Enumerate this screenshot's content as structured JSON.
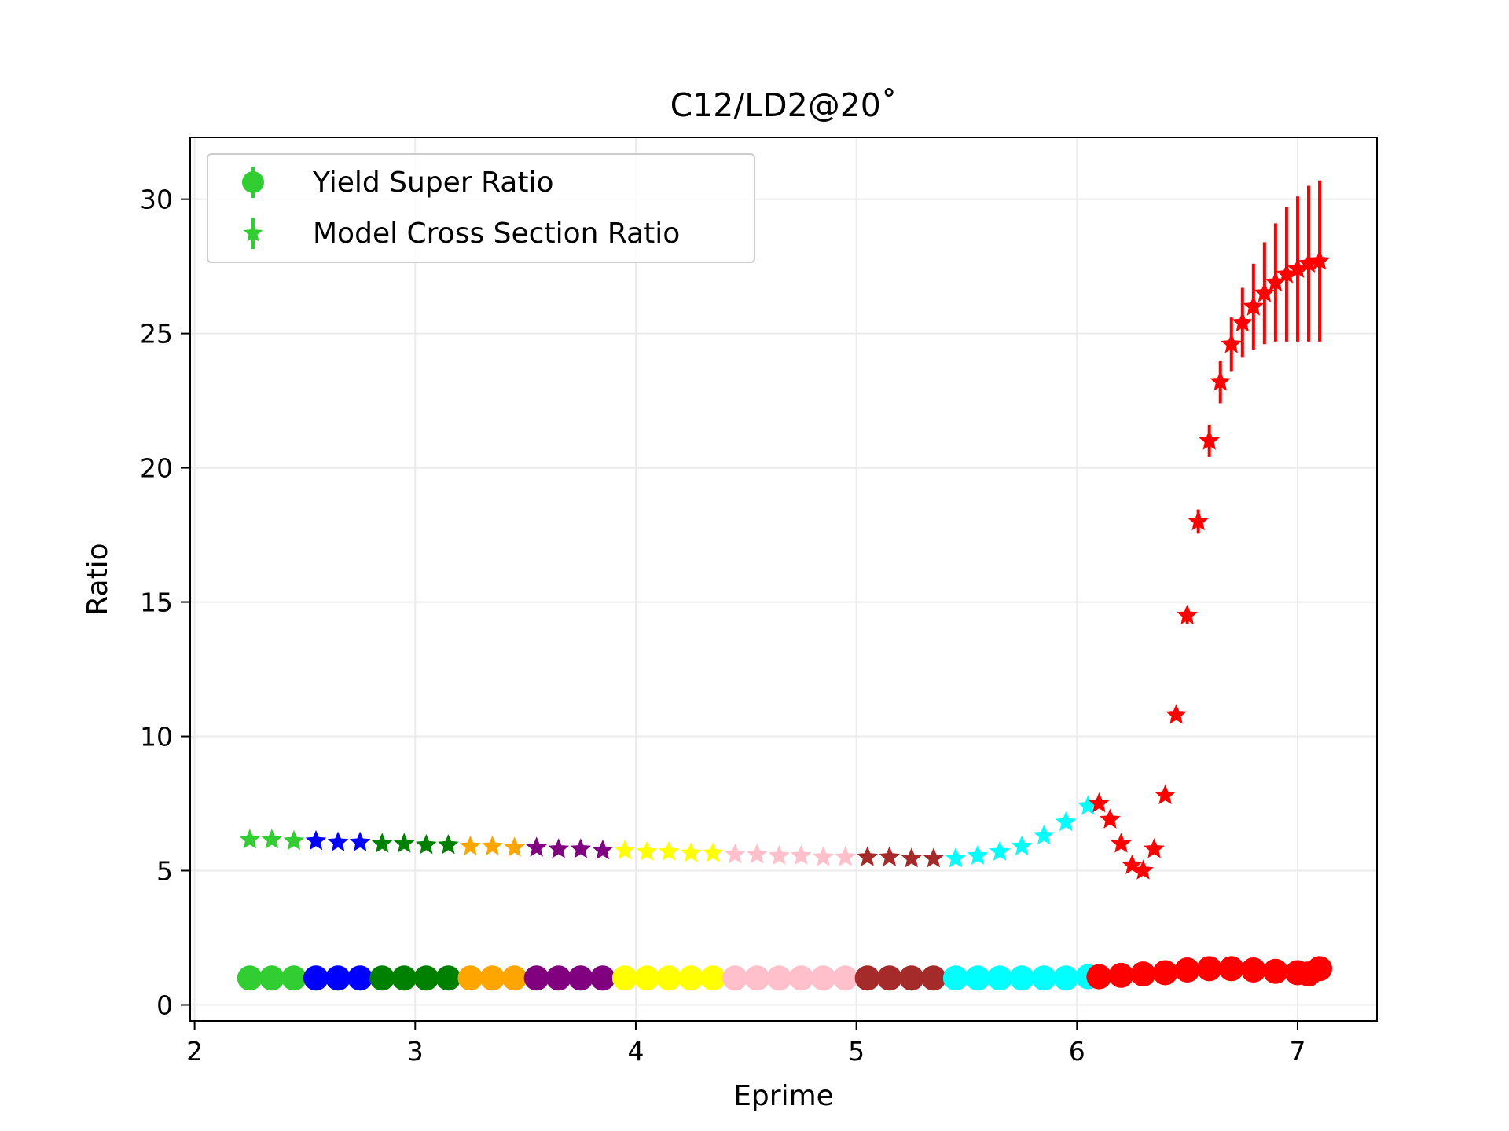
{
  "chart_data": {
    "type": "scatter",
    "title": "C12/LD2@20˚",
    "xlabel": "Eprime",
    "ylabel": "Ratio",
    "xlim": [
      1.98,
      7.36
    ],
    "ylim": [
      -0.6,
      32.3
    ],
    "xticks": [
      2,
      3,
      4,
      5,
      6,
      7
    ],
    "yticks": [
      0,
      5,
      10,
      15,
      20,
      25,
      30
    ],
    "xtick_labels": [
      "2",
      "3",
      "4",
      "5",
      "6",
      "7"
    ],
    "ytick_labels": [
      "0",
      "5",
      "10",
      "15",
      "20",
      "25",
      "30"
    ],
    "grid": true,
    "legend_position": "top-left",
    "legend": [
      {
        "label": "Yield Super Ratio",
        "marker": "circle",
        "color": "#32cd32"
      },
      {
        "label": "Model Cross Section Ratio",
        "marker": "star",
        "color": "#32cd32"
      }
    ],
    "segments": [
      {
        "color": "#32cd32",
        "x_range": [
          2.22,
          2.48
        ]
      },
      {
        "color": "#0000ff",
        "x_range": [
          2.52,
          2.78
        ]
      },
      {
        "color": "#008000",
        "x_range": [
          2.82,
          3.12
        ]
      },
      {
        "color": "#ffa500",
        "x_range": [
          3.15,
          3.49
        ]
      },
      {
        "color": "#800080",
        "x_range": [
          3.53,
          3.91
        ]
      },
      {
        "color": "#ffff00",
        "x_range": [
          3.95,
          4.38
        ]
      },
      {
        "color": "#ffc0cb",
        "x_range": [
          4.4,
          4.92
        ]
      },
      {
        "color": "#a52a2a",
        "x_range": [
          4.95,
          5.4
        ]
      },
      {
        "color": "#00ffff",
        "x_range": [
          5.42,
          6.05
        ]
      },
      {
        "color": "#ff0000",
        "x_range": [
          6.07,
          7.12
        ]
      }
    ],
    "series": [
      {
        "kind": "yield",
        "marker": "circle",
        "x": [
          2.25,
          2.35,
          2.45,
          2.55,
          2.65,
          2.75,
          2.85,
          2.95,
          3.05,
          3.15,
          3.25,
          3.35,
          3.45,
          3.55,
          3.65,
          3.75,
          3.85,
          3.95,
          4.05,
          4.15,
          4.25,
          4.35,
          4.45,
          4.55,
          4.65,
          4.75,
          4.85,
          4.95,
          5.05,
          5.15,
          5.25,
          5.35,
          5.45,
          5.55,
          5.65,
          5.75,
          5.85,
          5.95,
          6.05,
          6.1,
          6.2,
          6.3,
          6.4,
          6.5,
          6.6,
          6.7,
          6.8,
          6.9,
          7.0,
          7.05,
          7.1
        ],
        "y": [
          1.0,
          1.0,
          1.0,
          1.0,
          1.0,
          1.0,
          1.0,
          1.0,
          1.0,
          1.0,
          1.0,
          1.0,
          1.0,
          1.0,
          1.0,
          1.0,
          1.0,
          1.0,
          1.0,
          1.0,
          1.0,
          1.0,
          1.0,
          1.0,
          1.0,
          1.0,
          1.0,
          1.0,
          1.0,
          1.0,
          1.0,
          1.0,
          1.0,
          1.0,
          1.0,
          1.0,
          1.0,
          1.0,
          1.05,
          1.05,
          1.1,
          1.15,
          1.2,
          1.3,
          1.35,
          1.35,
          1.3,
          1.25,
          1.2,
          1.15,
          1.35
        ]
      },
      {
        "kind": "model",
        "marker": "star",
        "x": [
          2.25,
          2.35,
          2.45,
          2.55,
          2.65,
          2.75,
          2.85,
          2.95,
          3.05,
          3.15,
          3.25,
          3.35,
          3.45,
          3.55,
          3.65,
          3.75,
          3.85,
          3.95,
          4.05,
          4.15,
          4.25,
          4.35,
          4.45,
          4.55,
          4.65,
          4.75,
          4.85,
          4.95,
          5.05,
          5.15,
          5.25,
          5.35,
          5.45,
          5.55,
          5.65,
          5.75,
          5.85,
          5.95,
          6.05,
          6.1,
          6.15,
          6.2,
          6.25,
          6.3,
          6.35,
          6.4,
          6.45,
          6.5,
          6.55,
          6.6,
          6.65,
          6.7,
          6.75,
          6.8,
          6.85,
          6.9,
          6.95,
          7.0,
          7.05,
          7.1
        ],
        "y": [
          6.15,
          6.15,
          6.1,
          6.1,
          6.05,
          6.05,
          6.0,
          6.0,
          5.95,
          5.95,
          5.9,
          5.9,
          5.85,
          5.85,
          5.8,
          5.8,
          5.75,
          5.75,
          5.7,
          5.7,
          5.65,
          5.65,
          5.6,
          5.6,
          5.55,
          5.55,
          5.5,
          5.5,
          5.5,
          5.5,
          5.45,
          5.45,
          5.45,
          5.55,
          5.7,
          5.9,
          6.3,
          6.8,
          7.4,
          7.5,
          6.9,
          6.0,
          5.2,
          5.0,
          5.8,
          7.8,
          10.8,
          14.5,
          18.0,
          21.0,
          23.2,
          24.6,
          25.4,
          26.0,
          26.5,
          26.9,
          27.2,
          27.4,
          27.6,
          27.7
        ],
        "yerr": [
          0,
          0,
          0,
          0,
          0,
          0,
          0,
          0,
          0,
          0,
          0,
          0,
          0,
          0,
          0,
          0,
          0,
          0,
          0,
          0,
          0,
          0,
          0,
          0,
          0,
          0,
          0,
          0,
          0,
          0,
          0,
          0,
          0,
          0,
          0,
          0,
          0,
          0,
          0,
          0,
          0,
          0,
          0,
          0,
          0,
          0.1,
          0.2,
          0.3,
          0.45,
          0.6,
          0.8,
          1.0,
          1.3,
          1.6,
          1.9,
          2.2,
          2.5,
          2.7,
          2.9,
          3.0
        ]
      }
    ]
  }
}
